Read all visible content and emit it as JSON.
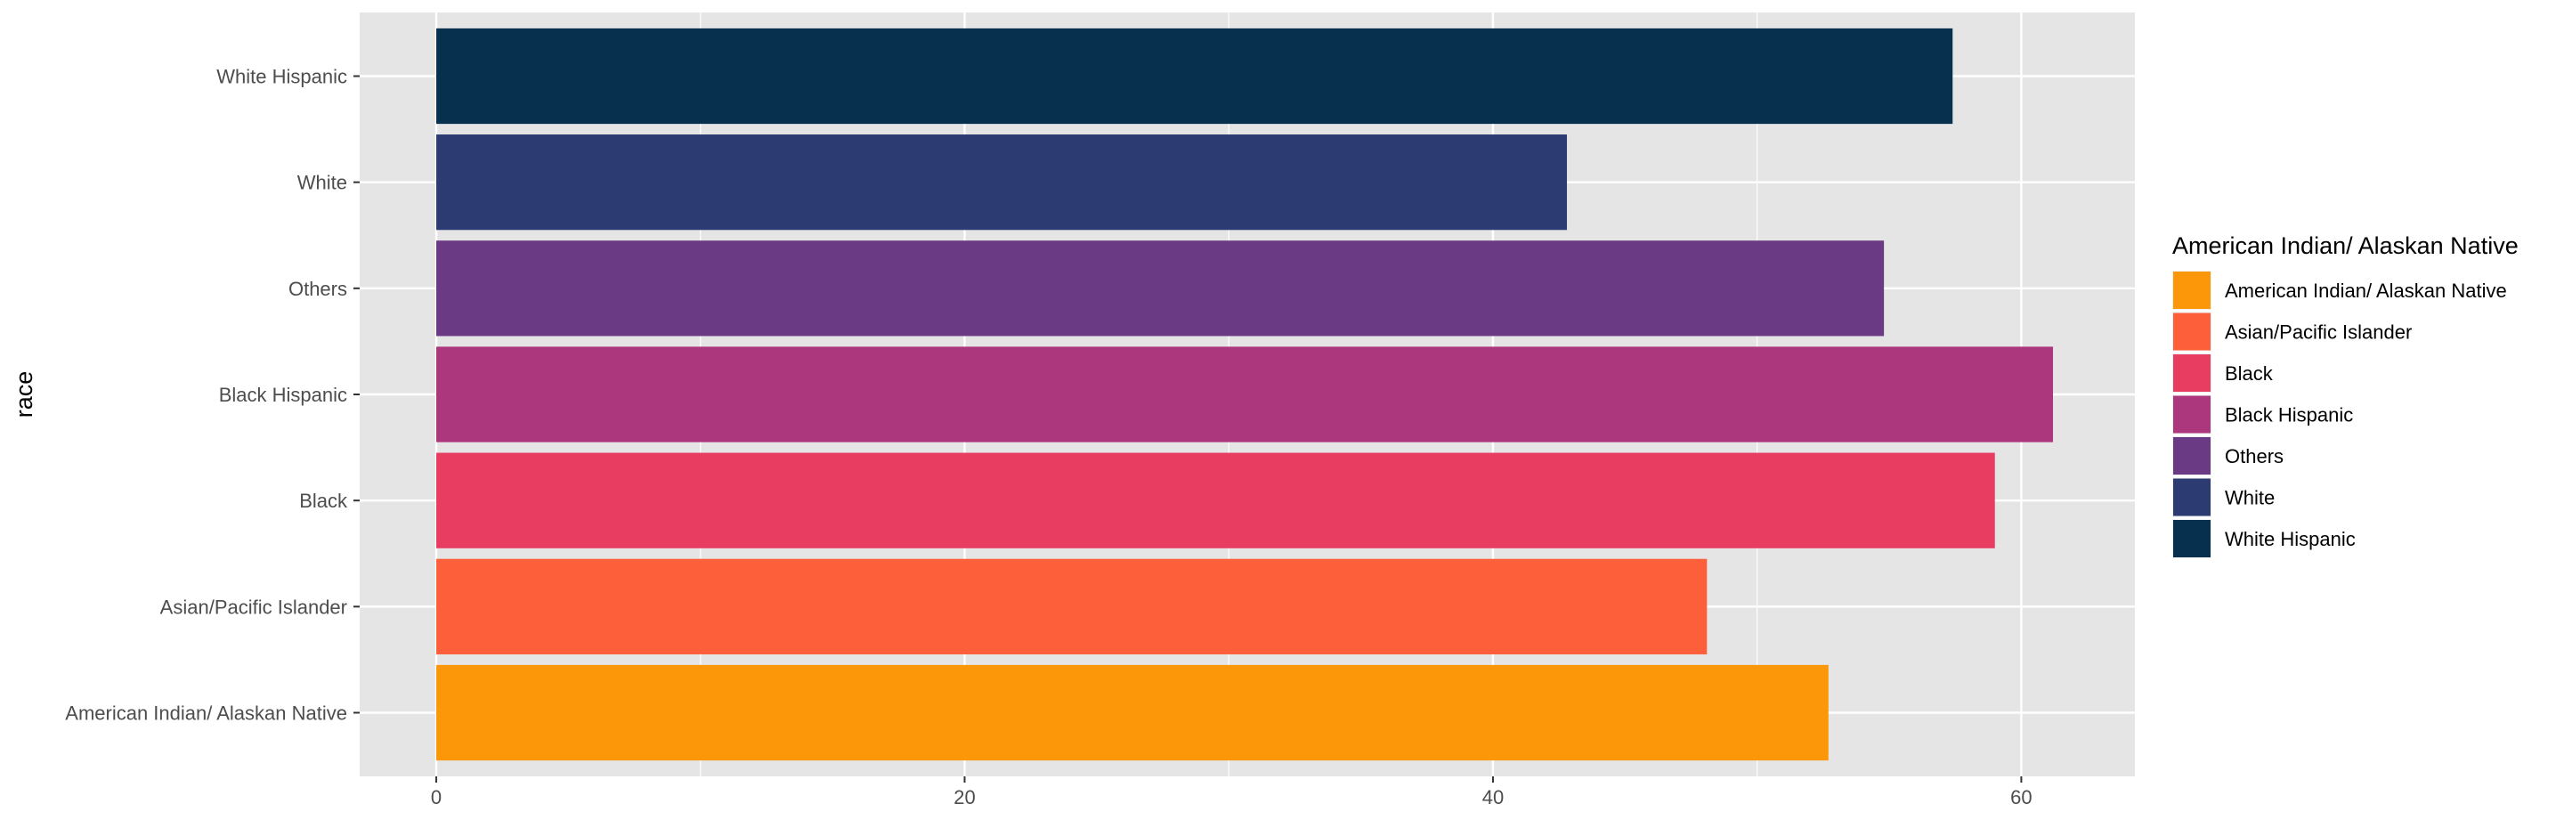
{
  "chart_data": {
    "type": "bar",
    "orientation": "horizontal",
    "title": "",
    "xlabel": "",
    "ylabel": "race",
    "categories": [
      "American Indian/ Alaskan Native",
      "Asian/Pacific Islander",
      "Black",
      "Black Hispanic",
      "Others",
      "White",
      "White Hispanic"
    ],
    "values": [
      52.7,
      48.1,
      59.0,
      61.2,
      54.8,
      42.8,
      57.4
    ],
    "colors": [
      "#FB9708",
      "#FE5F3B",
      "#E83C61",
      "#AD377C",
      "#6A3B84",
      "#2C3B71",
      "#06304D"
    ],
    "x_ticks": [
      0,
      20,
      40,
      60
    ],
    "xlim": [
      -2.9,
      64.3
    ],
    "grid": true,
    "panel_background": "#E5E5E5",
    "legend": {
      "title": "American Indian/ Alaskan Native",
      "position": "right",
      "entries": [
        "American Indian/ Alaskan Native",
        "Asian/Pacific Islander",
        "Black",
        "Black Hispanic",
        "Others",
        "White",
        "White Hispanic"
      ]
    }
  }
}
